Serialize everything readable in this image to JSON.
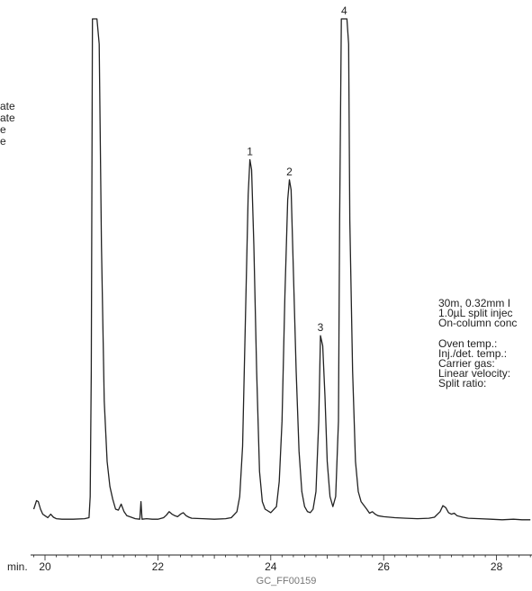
{
  "chart_data": {
    "type": "line",
    "title": "",
    "xlabel": "",
    "ylabel": "",
    "x_unit_label": "min.",
    "xlim": [
      19.8,
      28.6
    ],
    "xticks": [
      20,
      22,
      24,
      26,
      28
    ],
    "ylim": [
      0,
      100
    ],
    "grid": false,
    "figure_code": "GC_FF00159",
    "legend_fragments": [
      "ate",
      "ate",
      "e",
      "e"
    ],
    "conditions": {
      "column_lines": [
        "30m, 0.32mm I",
        "1.0µL split injec",
        "On-column conc"
      ],
      "parameter_labels": [
        "Oven temp.:",
        "Inj./det. temp.:",
        "Carrier gas:",
        "Linear velocity:",
        "Split ratio:"
      ]
    },
    "peaks": [
      {
        "label": "1",
        "rt": 23.63,
        "height": 72
      },
      {
        "label": "2",
        "rt": 24.33,
        "height": 68
      },
      {
        "label": "3",
        "rt": 24.88,
        "height": 37
      },
      {
        "label": "4",
        "rt": 25.3,
        "height": 100,
        "offscale": true
      }
    ],
    "trace": {
      "x": [
        19.8,
        19.85,
        19.88,
        19.92,
        19.96,
        20.0,
        20.05,
        20.1,
        20.15,
        20.2,
        20.3,
        20.5,
        20.7,
        20.78,
        20.8,
        20.82,
        20.84,
        20.86,
        20.88,
        20.92,
        20.96,
        21.0,
        21.05,
        21.1,
        21.15,
        21.2,
        21.25,
        21.3,
        21.35,
        21.4,
        21.45,
        21.5,
        21.6,
        21.68,
        21.7,
        21.72,
        21.8,
        21.9,
        22.0,
        22.1,
        22.15,
        22.2,
        22.25,
        22.3,
        22.35,
        22.4,
        22.45,
        22.5,
        22.55,
        22.6,
        22.8,
        23.0,
        23.2,
        23.3,
        23.4,
        23.45,
        23.5,
        23.55,
        23.6,
        23.63,
        23.66,
        23.7,
        23.75,
        23.8,
        23.85,
        23.9,
        24.0,
        24.1,
        24.15,
        24.2,
        24.25,
        24.3,
        24.33,
        24.36,
        24.4,
        24.45,
        24.5,
        24.55,
        24.6,
        24.65,
        24.7,
        24.75,
        24.8,
        24.85,
        24.88,
        24.92,
        24.96,
        25.0,
        25.05,
        25.1,
        25.15,
        25.2,
        25.22,
        25.25,
        25.35,
        25.38,
        25.4,
        25.45,
        25.5,
        25.55,
        25.6,
        25.7,
        25.75,
        25.8,
        25.85,
        25.9,
        26.0,
        26.2,
        26.4,
        26.6,
        26.8,
        26.9,
        27.0,
        27.05,
        27.1,
        27.15,
        27.2,
        27.25,
        27.3,
        27.4,
        27.5,
        27.7,
        27.9,
        28.1,
        28.3,
        28.45,
        28.6
      ],
      "y": [
        2.5,
        4.2,
        4.0,
        2.5,
        1.5,
        1.2,
        0.8,
        1.5,
        0.9,
        0.6,
        0.5,
        0.5,
        0.6,
        0.8,
        5,
        30,
        100,
        100,
        100,
        100,
        95,
        55,
        24,
        12,
        7,
        4.5,
        2.5,
        2.3,
        3.5,
        2.0,
        1.2,
        1.0,
        0.6,
        0.5,
        4.0,
        0.5,
        0.6,
        0.5,
        0.5,
        0.8,
        1.3,
        2.0,
        1.5,
        1.2,
        1.0,
        1.5,
        1.8,
        1.2,
        0.9,
        0.7,
        0.6,
        0.5,
        0.6,
        0.8,
        2,
        5,
        15,
        40,
        65,
        72,
        70,
        55,
        30,
        10,
        4,
        2.5,
        1.8,
        3,
        8,
        20,
        45,
        64,
        68,
        66,
        50,
        30,
        14,
        6,
        3,
        2,
        1.8,
        2.5,
        6,
        20,
        37,
        35,
        25,
        12,
        5,
        3,
        5,
        20,
        60,
        100,
        100,
        95,
        60,
        30,
        12,
        6,
        4,
        2.5,
        1.7,
        2.0,
        1.5,
        1.2,
        1.0,
        0.8,
        0.7,
        0.6,
        0.7,
        0.9,
        2.0,
        3.2,
        2.8,
        1.8,
        1.5,
        1.7,
        1.2,
        0.9,
        0.7,
        0.6,
        0.5,
        0.4,
        0.5,
        0.4,
        0.4
      ]
    }
  }
}
